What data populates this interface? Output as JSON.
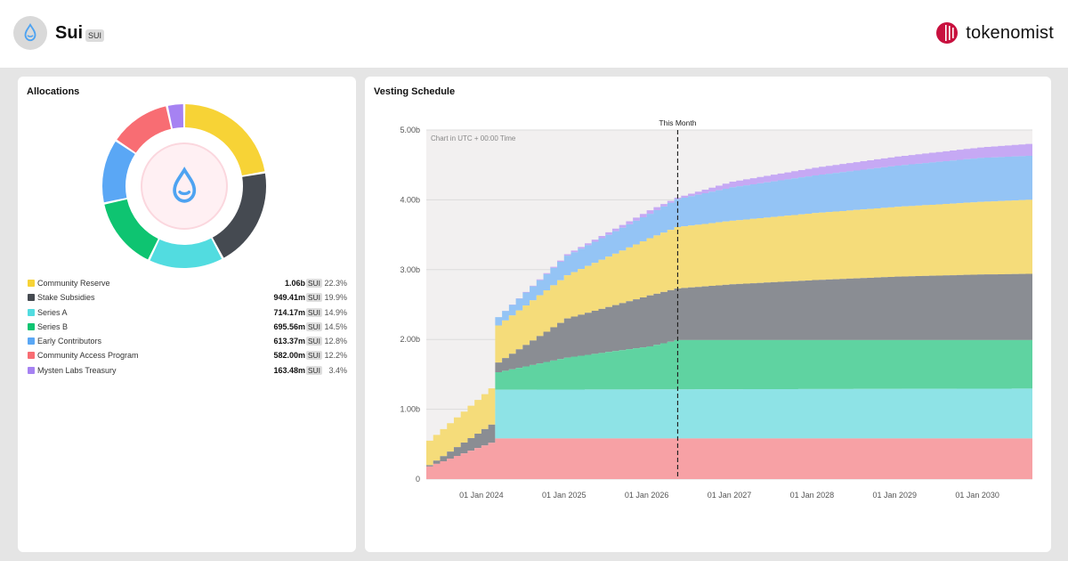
{
  "header": {
    "token_name": "Sui",
    "token_symbol": "SUI",
    "brand_name": "tokenomist",
    "token_icon": "sui-droplet-icon",
    "brand_icon": "tokenomist-logo-icon"
  },
  "allocations": {
    "title": "Allocations",
    "center_icon": "sui-droplet-icon",
    "items": [
      {
        "label": "Community Reserve",
        "amount": "1.06b",
        "unit": "SUI",
        "percent": "22.3%",
        "value": 22.3,
        "color": "#f7d336"
      },
      {
        "label": "Stake Subsidies",
        "amount": "949.41m",
        "unit": "SUI",
        "percent": "19.9%",
        "value": 19.9,
        "color": "#454a51"
      },
      {
        "label": "Series A",
        "amount": "714.17m",
        "unit": "SUI",
        "percent": "14.9%",
        "value": 14.9,
        "color": "#52dce0"
      },
      {
        "label": "Series B",
        "amount": "695.56m",
        "unit": "SUI",
        "percent": "14.5%",
        "value": 14.5,
        "color": "#0ec471"
      },
      {
        "label": "Early Contributors",
        "amount": "613.37m",
        "unit": "SUI",
        "percent": "12.8%",
        "value": 12.8,
        "color": "#5aa7f5"
      },
      {
        "label": "Community Access Program",
        "amount": "582.00m",
        "unit": "SUI",
        "percent": "12.2%",
        "value": 12.2,
        "color": "#f86d73"
      },
      {
        "label": "Mysten Labs Treasury",
        "amount": "163.48m",
        "unit": "SUI",
        "percent": "3.4%",
        "value": 3.4,
        "color": "#a682f2"
      }
    ]
  },
  "vesting": {
    "title": "Vesting Schedule",
    "note": "Chart in UTC + 00:00 Time",
    "marker_label": "This Month"
  },
  "chart_data": {
    "type": "area",
    "stacked": true,
    "title": "Vesting Schedule",
    "xlabel": "",
    "ylabel": "",
    "ylim": [
      0,
      5000000000
    ],
    "yticks": [
      {
        "value": 0,
        "label": "0"
      },
      {
        "value": 1000000000,
        "label": "1.00b"
      },
      {
        "value": 2000000000,
        "label": "2.00b"
      },
      {
        "value": 3000000000,
        "label": "3.00b"
      },
      {
        "value": 4000000000,
        "label": "4.00b"
      },
      {
        "value": 5000000000,
        "label": "5.00b"
      }
    ],
    "xlim": [
      "2023-05",
      "2030-09"
    ],
    "xticks": [
      {
        "value": "2024-01",
        "label": "01 Jan 2024"
      },
      {
        "value": "2025-01",
        "label": "01 Jan 2025"
      },
      {
        "value": "2026-01",
        "label": "01 Jan 2026"
      },
      {
        "value": "2027-01",
        "label": "01 Jan 2027"
      },
      {
        "value": "2028-01",
        "label": "01 Jan 2028"
      },
      {
        "value": "2029-01",
        "label": "01 Jan 2029"
      },
      {
        "value": "2030-01",
        "label": "01 Jan 2030"
      }
    ],
    "marker": {
      "x": "2026-05",
      "label": "This Month"
    },
    "grid": true,
    "legend": "none",
    "series_order_bottom_to_top": [
      "Community Access Program",
      "Series A",
      "Series B",
      "Stake Subsidies",
      "Community Reserve",
      "Early Contributors",
      "Mysten Labs Treasury"
    ],
    "series": [
      {
        "name": "Community Access Program",
        "color": "#f7a1a5",
        "points": [
          [
            "2023-05",
            0.18
          ],
          [
            "2024-02",
            0.52
          ],
          [
            "2024-03",
            0.582
          ],
          [
            "2030-08",
            0.582
          ]
        ]
      },
      {
        "name": "Series A",
        "color": "#8ee3e6",
        "points": [
          [
            "2023-05",
            0.18
          ],
          [
            "2024-02",
            0.52
          ],
          [
            "2024-03",
            1.28
          ],
          [
            "2030-08",
            1.296
          ]
        ]
      },
      {
        "name": "Series B",
        "color": "#5fd3a1",
        "points": [
          [
            "2023-05",
            0.18
          ],
          [
            "2024-02",
            0.52
          ],
          [
            "2024-03",
            1.53
          ],
          [
            "2025-01",
            1.74
          ],
          [
            "2026-01",
            1.9
          ],
          [
            "2026-05",
            1.991
          ],
          [
            "2030-08",
            1.991
          ]
        ]
      },
      {
        "name": "Stake Subsidies",
        "color": "#8a8d93",
        "points": [
          [
            "2023-05",
            0.2
          ],
          [
            "2024-02",
            0.78
          ],
          [
            "2024-03",
            1.67
          ],
          [
            "2025-01",
            2.3
          ],
          [
            "2026-01",
            2.63
          ],
          [
            "2026-05",
            2.73
          ],
          [
            "2027-01",
            2.79
          ],
          [
            "2028-01",
            2.85
          ],
          [
            "2029-01",
            2.9
          ],
          [
            "2030-01",
            2.93
          ],
          [
            "2030-08",
            2.94
          ]
        ]
      },
      {
        "name": "Community Reserve",
        "color": "#f5dc7a",
        "points": [
          [
            "2023-05",
            0.55
          ],
          [
            "2024-02",
            1.3
          ],
          [
            "2024-03",
            2.2
          ],
          [
            "2025-01",
            2.92
          ],
          [
            "2026-01",
            3.45
          ],
          [
            "2026-05",
            3.61
          ],
          [
            "2027-01",
            3.7
          ],
          [
            "2028-01",
            3.81
          ],
          [
            "2029-01",
            3.9
          ],
          [
            "2030-01",
            3.97
          ],
          [
            "2030-08",
            4.0
          ]
        ]
      },
      {
        "name": "Early Contributors",
        "color": "#94c4f5",
        "points": [
          [
            "2023-05",
            0.55
          ],
          [
            "2024-02",
            1.3
          ],
          [
            "2024-03",
            2.32
          ],
          [
            "2025-01",
            3.2
          ],
          [
            "2026-01",
            3.8
          ],
          [
            "2026-05",
            4.01
          ],
          [
            "2027-01",
            4.18
          ],
          [
            "2028-01",
            4.35
          ],
          [
            "2029-01",
            4.49
          ],
          [
            "2030-01",
            4.6
          ],
          [
            "2030-08",
            4.63
          ]
        ]
      },
      {
        "name": "Mysten Labs Treasury",
        "color": "#c6a9f4",
        "points": [
          [
            "2023-05",
            0.55
          ],
          [
            "2024-02",
            1.3
          ],
          [
            "2024-03",
            2.32
          ],
          [
            "2025-01",
            3.22
          ],
          [
            "2026-01",
            3.85
          ],
          [
            "2026-05",
            4.03
          ],
          [
            "2027-01",
            4.26
          ],
          [
            "2028-01",
            4.46
          ],
          [
            "2029-01",
            4.62
          ],
          [
            "2030-01",
            4.75
          ],
          [
            "2030-08",
            4.8
          ]
        ]
      }
    ],
    "value_unit_multiplier": 1000000000
  }
}
